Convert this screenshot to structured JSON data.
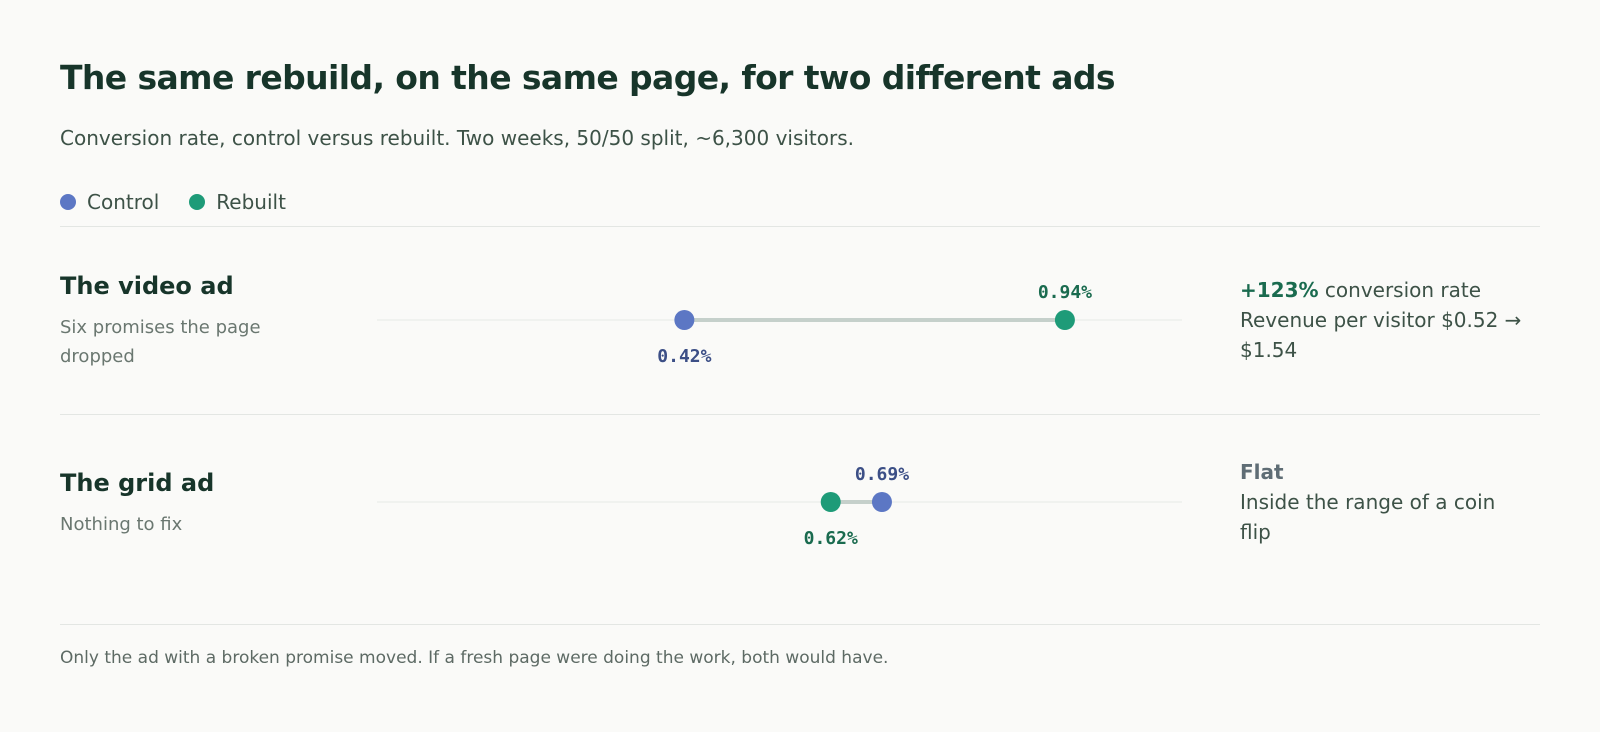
{
  "title": "The same rebuild, on the same page, for two different ads",
  "subtitle": "Conversion rate, control versus rebuilt. Two weeks, 50/50 split, ~6,300 visitors.",
  "legend": [
    {
      "label": "Control",
      "color": "#5c77c4"
    },
    {
      "label": "Rebuilt",
      "color": "#1e9b78"
    }
  ],
  "rows": [
    {
      "title": "The video ad",
      "subtitle": "Six promises the page dropped",
      "result_lead": "+123%",
      "result_lead_rest": " conversion rate",
      "result_detail": "Revenue per visitor $0.52 → $1.54"
    },
    {
      "title": "The grid ad",
      "subtitle": "Nothing to fix",
      "result_lead": "Flat",
      "result_lead_rest": "",
      "result_detail": "Inside the range of a coin flip"
    }
  ],
  "footnote": "Only the ad with a broken promise moved. If a fresh page were doing the work, both would have.",
  "chart_data": {
    "type": "scatter",
    "title": "The same rebuild, on the same page, for two different ads",
    "subtitle": "Conversion rate, control versus rebuilt. Two weeks, 50/50 split, ~6,300 visitors.",
    "unit": "%",
    "xlim": [
      0.0,
      1.1
    ],
    "grid": false,
    "legend_position": "top-left",
    "categories": [
      "The video ad",
      "The grid ad"
    ],
    "series": [
      {
        "name": "Control",
        "color": "#5c77c4",
        "values": [
          0.42,
          0.69
        ],
        "labels": [
          "0.42%",
          "0.69%"
        ]
      },
      {
        "name": "Rebuilt",
        "color": "#1e9b78",
        "values": [
          0.94,
          0.62
        ],
        "labels": [
          "0.94%",
          "0.62%"
        ]
      }
    ]
  }
}
